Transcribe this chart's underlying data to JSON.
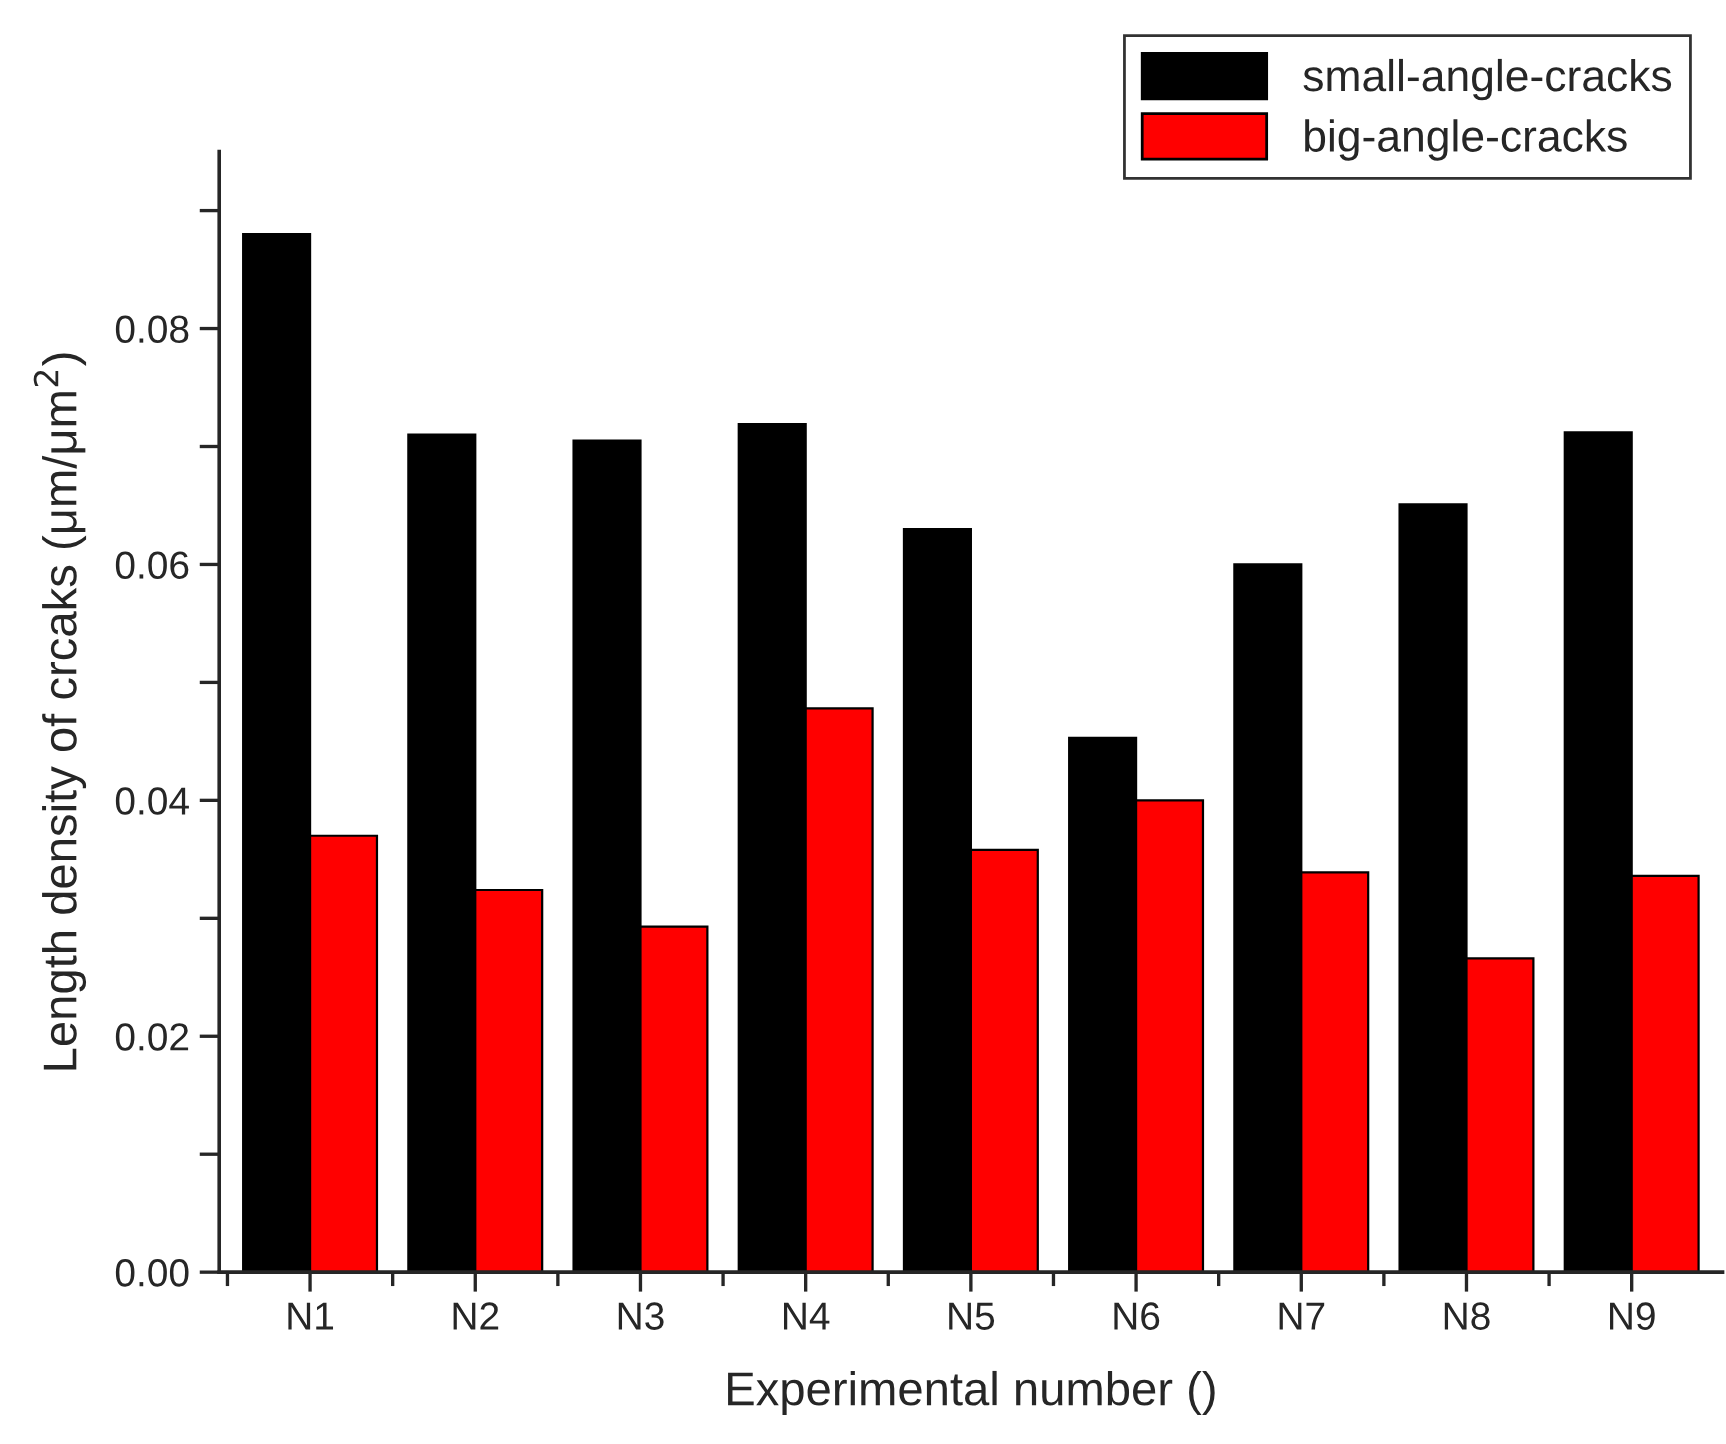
{
  "chart_data": {
    "type": "bar",
    "xlabel": "Experimental number ()",
    "ylabel": "Length density of crcaks (μm/μm$^{2}$)",
    "categories": [
      "N1",
      "N2",
      "N3",
      "N4",
      "N5",
      "N6",
      "N7",
      "N8",
      "N9"
    ],
    "series": [
      {
        "name": "small-angle-cracks",
        "color": "#000000",
        "values": [
          0.088,
          0.071,
          0.0705,
          0.0719,
          0.063,
          0.0453,
          0.06,
          0.0651,
          0.0712
        ]
      },
      {
        "name": "big-angle-cracks",
        "color": "#ff0000",
        "values": [
          0.037,
          0.0324,
          0.0293,
          0.0478,
          0.0358,
          0.04,
          0.0339,
          0.0266,
          0.0336
        ]
      }
    ],
    "ylim": [
      0,
      0.095
    ],
    "yticks": [
      {
        "value": 0,
        "label": "0.00"
      },
      {
        "value": 0.01,
        "label": null
      },
      {
        "value": 0.02,
        "label": "0.02"
      },
      {
        "value": 0.03,
        "label": null
      },
      {
        "value": 0.04,
        "label": "0.04"
      },
      {
        "value": 0.05,
        "label": null
      },
      {
        "value": 0.06,
        "label": "0.06"
      },
      {
        "value": 0.07,
        "label": null
      },
      {
        "value": 0.08,
        "label": "0.08"
      },
      {
        "value": 0.09,
        "label": null
      }
    ],
    "grid": false,
    "legend": "top right"
  }
}
